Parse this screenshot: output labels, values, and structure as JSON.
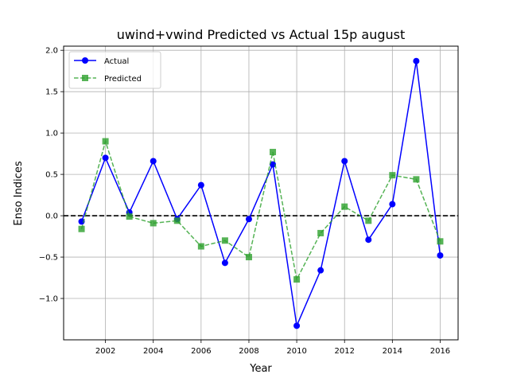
{
  "chart_data": {
    "type": "line",
    "title": "uwind+vwind Predicted vs Actual 15p august",
    "xlabel": "Year",
    "ylabel": "Enso Indices",
    "x": [
      2001,
      2002,
      2003,
      2004,
      2005,
      2006,
      2007,
      2008,
      2009,
      2010,
      2011,
      2012,
      2013,
      2014,
      2015,
      2016
    ],
    "xlim": [
      2000.25,
      2016.75
    ],
    "ylim": [
      -1.5,
      2.05
    ],
    "xticks": [
      2002,
      2004,
      2006,
      2008,
      2010,
      2012,
      2014,
      2016
    ],
    "yticks": [
      -1.0,
      -0.5,
      0.0,
      0.5,
      1.0,
      1.5,
      2.0
    ],
    "ytick_labels": [
      "−1.0",
      "−0.5",
      "0.0",
      "0.5",
      "1.0",
      "1.5",
      "2.0"
    ],
    "grid": true,
    "reference_line": 0.0,
    "legend_position": "top-left",
    "series": [
      {
        "name": "Actual",
        "values": [
          -0.07,
          0.7,
          0.04,
          0.66,
          -0.04,
          0.37,
          -0.57,
          -0.04,
          0.62,
          -1.33,
          -0.66,
          0.66,
          -0.29,
          0.14,
          1.87,
          -0.48
        ],
        "color": "#0000ff",
        "marker": "circle",
        "line_style": "solid"
      },
      {
        "name": "Predicted",
        "values": [
          -0.16,
          0.9,
          -0.01,
          -0.09,
          -0.06,
          -0.37,
          -0.3,
          -0.5,
          0.77,
          -0.77,
          -0.21,
          0.11,
          -0.06,
          0.49,
          0.44,
          -0.31
        ],
        "color": "#2ca02c",
        "marker": "square",
        "line_style": "dashed"
      }
    ]
  }
}
